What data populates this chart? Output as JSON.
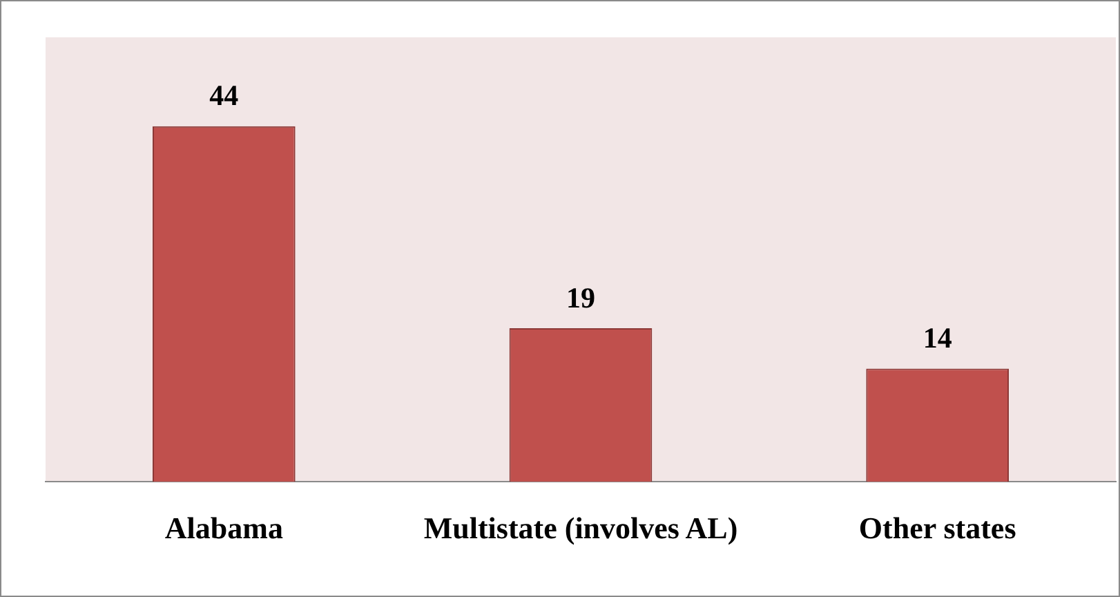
{
  "chart_data": {
    "type": "bar",
    "categories": [
      "Alabama",
      "Multistate (involves AL)",
      "Other states"
    ],
    "values": [
      44,
      19,
      14
    ],
    "color": "#c0504d",
    "ylim": [
      0,
      55
    ],
    "data_labels": true,
    "grid": false,
    "legend": false,
    "tick_labels": "x"
  }
}
